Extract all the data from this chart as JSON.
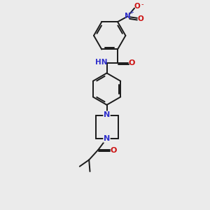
{
  "bg_color": "#ebebeb",
  "bond_color": "#1a1a1a",
  "N_color": "#3030cc",
  "O_color": "#cc1010",
  "figsize": [
    3.0,
    3.0
  ],
  "dpi": 100,
  "xlim": [
    -2.5,
    2.5
  ],
  "ylim": [
    -5.5,
    5.5
  ]
}
